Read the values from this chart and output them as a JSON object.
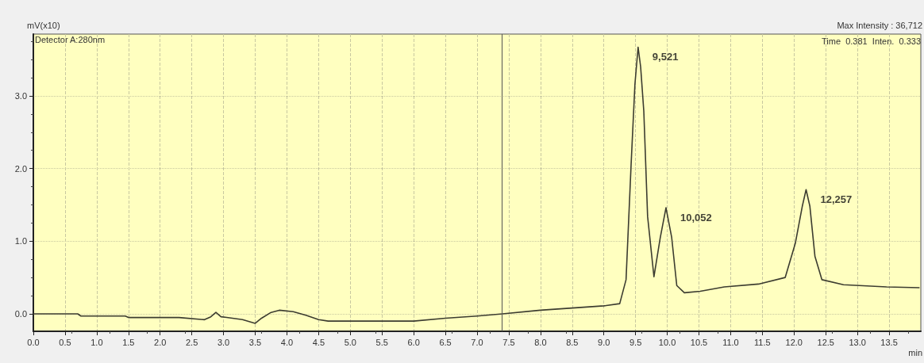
{
  "chart_data": {
    "type": "line",
    "xlabel": "min",
    "ylabel": "mV(x10)",
    "annotations": [
      "Detector A:280nm",
      "Max Intensity : 36,712",
      "Time  0.381  Inten.  0.333",
      {
        "text": "9,521",
        "x": 9.54,
        "y": 3.67
      },
      {
        "text": "10,052",
        "x": 9.98,
        "y": 1.46
      },
      {
        "text": "12,257",
        "x": 12.19,
        "y": 1.71
      }
    ],
    "xlim": [
      0,
      14.0
    ],
    "ylim": [
      -0.24,
      3.85
    ],
    "xticks": [
      {
        "value": 0,
        "label": "0.0"
      },
      {
        "value": 0.5,
        "label": "0.5"
      },
      {
        "value": 1,
        "label": "1.0"
      },
      {
        "value": 1.5,
        "label": "1.5"
      },
      {
        "value": 2,
        "label": "2.0"
      },
      {
        "value": 2.5,
        "label": "2.5"
      },
      {
        "value": 3,
        "label": "3.0"
      },
      {
        "value": 3.5,
        "label": "3.5"
      },
      {
        "value": 4,
        "label": "4.0"
      },
      {
        "value": 4.5,
        "label": "4.5"
      },
      {
        "value": 5,
        "label": "5.0"
      },
      {
        "value": 5.5,
        "label": "5.5"
      },
      {
        "value": 6,
        "label": "6.0"
      },
      {
        "value": 6.5,
        "label": "6.5"
      },
      {
        "value": 7,
        "label": "7.0"
      },
      {
        "value": 7.5,
        "label": "7.5"
      },
      {
        "value": 8,
        "label": "8.0"
      },
      {
        "value": 8.5,
        "label": "8.5"
      },
      {
        "value": 9,
        "label": "9.0"
      },
      {
        "value": 9.5,
        "label": "9.5"
      },
      {
        "value": 10,
        "label": "10.0"
      },
      {
        "value": 10.5,
        "label": "10.5"
      },
      {
        "value": 11,
        "label": "11.0"
      },
      {
        "value": 11.5,
        "label": "11.5"
      },
      {
        "value": 12,
        "label": "12.0"
      },
      {
        "value": 12.5,
        "label": "12.5"
      },
      {
        "value": 13,
        "label": "13.0"
      },
      {
        "value": 13.5,
        "label": "13.5"
      }
    ],
    "yticks": [
      {
        "value": 0,
        "label": "0.0"
      },
      {
        "value": 1,
        "label": "1.0"
      },
      {
        "value": 2,
        "label": "2.0"
      },
      {
        "value": 3,
        "label": "3.0"
      }
    ],
    "grid": true,
    "marker": "none",
    "line_style": "solid",
    "ref_lines": [
      {
        "axis": "x",
        "value": 7.39,
        "color": "#555555",
        "line_style": "solid"
      }
    ],
    "series": [
      {
        "color": "#3c3c30",
        "x": [
          0,
          0.7,
          0.75,
          1.45,
          1.5,
          2.3,
          2.7,
          2.8,
          2.88,
          2.96,
          3.05,
          3.3,
          3.5,
          3.6,
          3.75,
          3.88,
          4.1,
          4.3,
          4.5,
          4.65,
          5.0,
          6.0,
          6.5,
          7.0,
          7.4,
          8.0,
          8.5,
          9.0,
          9.25,
          9.35,
          9.43,
          9.49,
          9.54,
          9.58,
          9.63,
          9.69,
          9.79,
          9.89,
          9.98,
          10.07,
          10.15,
          10.27,
          10.52,
          10.9,
          11.44,
          11.86,
          12.02,
          12.13,
          12.19,
          12.25,
          12.33,
          12.44,
          12.78,
          13.46,
          13.98
        ],
        "values": [
          0,
          0,
          -0.03,
          -0.03,
          -0.05,
          -0.05,
          -0.08,
          -0.04,
          0.02,
          -0.04,
          -0.05,
          -0.08,
          -0.13,
          -0.06,
          0.02,
          0.05,
          0.03,
          -0.02,
          -0.08,
          -0.1,
          -0.1,
          -0.1,
          -0.06,
          -0.03,
          0,
          0.05,
          0.08,
          0.11,
          0.14,
          0.47,
          2.06,
          3.16,
          3.67,
          3.4,
          2.79,
          1.34,
          0.51,
          1.05,
          1.46,
          1.05,
          0.39,
          0.29,
          0.31,
          0.37,
          0.41,
          0.5,
          0.97,
          1.48,
          1.71,
          1.48,
          0.79,
          0.47,
          0.4,
          0.37,
          0.36
        ]
      }
    ]
  }
}
